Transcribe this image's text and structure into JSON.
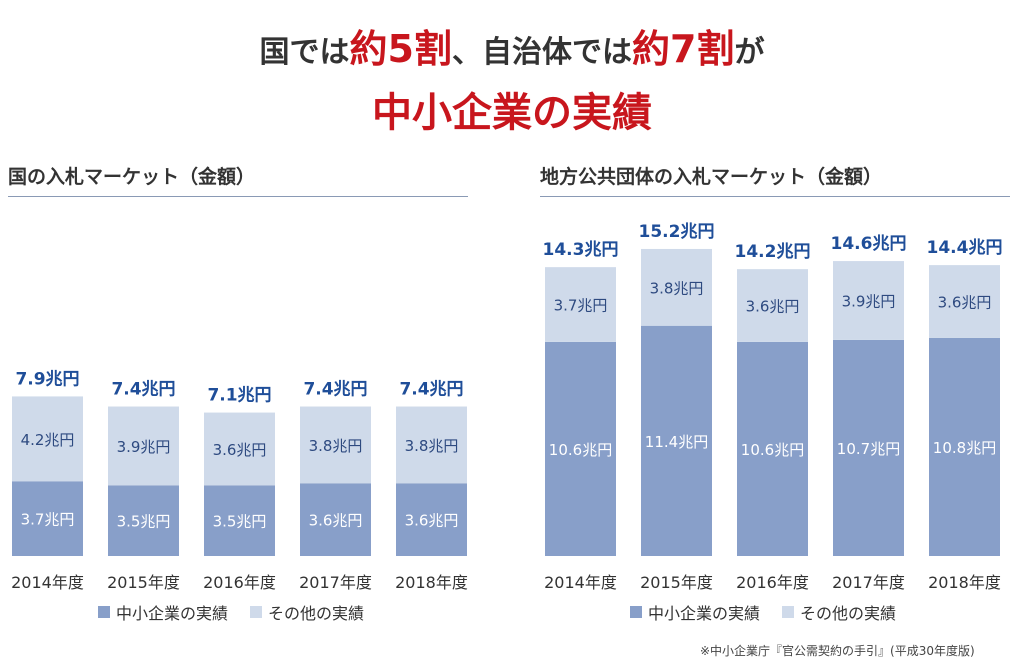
{
  "headline": {
    "line1": [
      {
        "text": "国では",
        "red": false
      },
      {
        "text": "約5割",
        "red": true
      },
      {
        "text": "、自治体では",
        "red": false
      },
      {
        "text": "約7割",
        "red": true
      },
      {
        "text": "が",
        "red": false
      }
    ],
    "line2": "中小企業の実績"
  },
  "legend": {
    "sme": "中小企業の実績",
    "other": "その他の実績"
  },
  "colors": {
    "sme": "#889fc9",
    "other": "#cfdaea",
    "total_label": "#1f4e99",
    "accent_red": "#c8161d",
    "rule": "#8a9ab5"
  },
  "footnote": "※中小企業庁『官公需契約の手引』(平成30年度版)",
  "chart_data": [
    {
      "type": "bar",
      "stacked": true,
      "title": "国の入札マーケット（金額）",
      "categories": [
        "2014年度",
        "2015年度",
        "2016年度",
        "2017年度",
        "2018年度"
      ],
      "series": [
        {
          "name": "中小企業の実績",
          "values": [
            3.7,
            3.5,
            3.5,
            3.6,
            3.6
          ],
          "labels": [
            "3.7兆円",
            "3.5兆円",
            "3.5兆円",
            "3.6兆円",
            "3.6兆円"
          ]
        },
        {
          "name": "その他の実績",
          "values": [
            4.2,
            3.9,
            3.6,
            3.8,
            3.8
          ],
          "labels": [
            "4.2兆円",
            "3.9兆円",
            "3.6兆円",
            "3.8兆円",
            "3.8兆円"
          ]
        }
      ],
      "totals": [
        7.9,
        7.4,
        7.1,
        7.4,
        7.4
      ],
      "total_labels": [
        "7.9兆円",
        "7.4兆円",
        "7.1兆円",
        "7.4兆円",
        "7.4兆円"
      ],
      "ylim": [
        0,
        16
      ]
    },
    {
      "type": "bar",
      "stacked": true,
      "title": "地方公共団体の入札マーケット（金額）",
      "categories": [
        "2014年度",
        "2015年度",
        "2016年度",
        "2017年度",
        "2018年度"
      ],
      "series": [
        {
          "name": "中小企業の実績",
          "values": [
            10.6,
            11.4,
            10.6,
            10.7,
            10.8
          ],
          "labels": [
            "10.6兆円",
            "11.4兆円",
            "10.6兆円",
            "10.7兆円",
            "10.8兆円"
          ]
        },
        {
          "name": "その他の実績",
          "values": [
            3.7,
            3.8,
            3.6,
            3.9,
            3.6
          ],
          "labels": [
            "3.7兆円",
            "3.8兆円",
            "3.6兆円",
            "3.9兆円",
            "3.6兆円"
          ]
        }
      ],
      "totals": [
        14.3,
        15.2,
        14.2,
        14.6,
        14.4
      ],
      "total_labels": [
        "14.3兆円",
        "15.2兆円",
        "14.2兆円",
        "14.6兆円",
        "14.4兆円"
      ],
      "ylim": [
        0,
        16
      ]
    }
  ]
}
